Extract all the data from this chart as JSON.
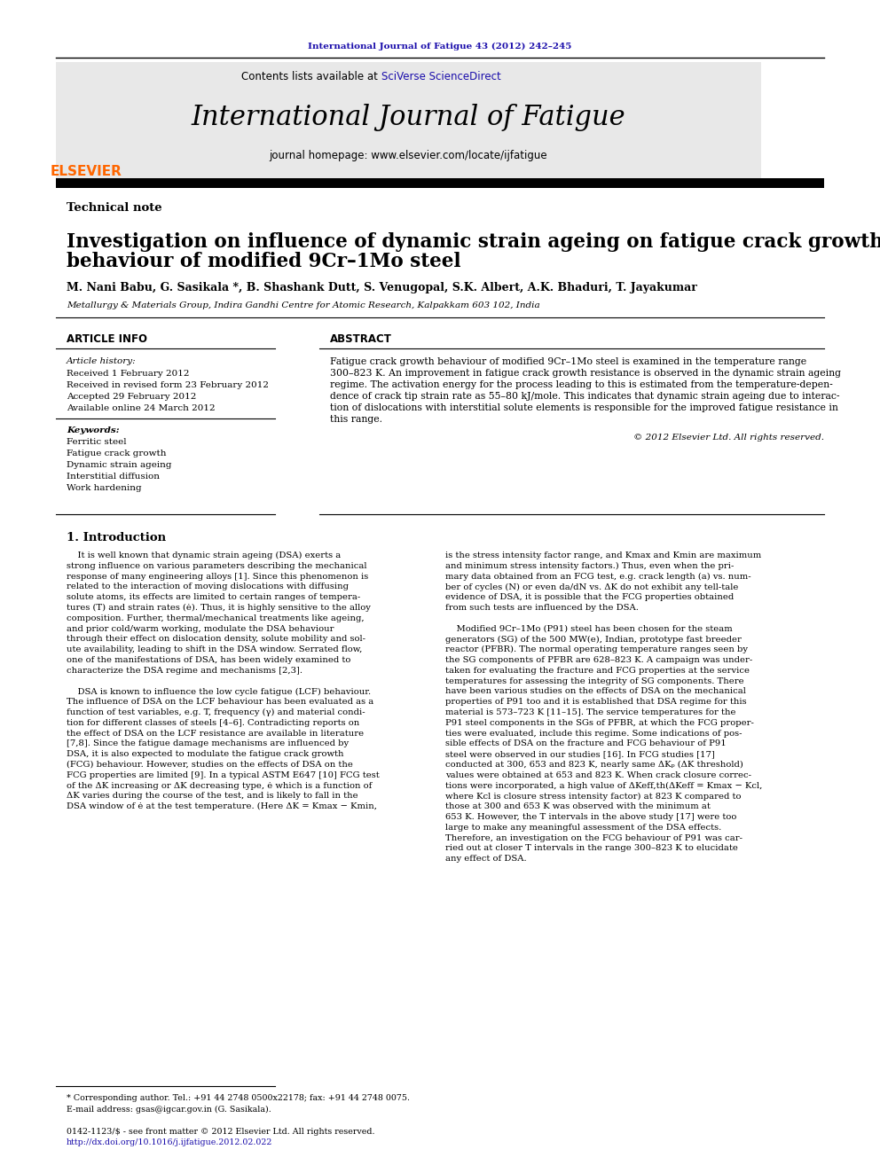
{
  "page_width": 9.92,
  "page_height": 13.23,
  "bg_color": "#ffffff",
  "top_url": "International Journal of Fatigue 43 (2012) 242–245",
  "top_url_color": "#1a0dab",
  "header_bg": "#e8e8e8",
  "contents_text": "Contents lists available at ",
  "sciverse_text": "SciVerse ScienceDirect",
  "sciverse_color": "#1a0dab",
  "journal_title": "International Journal of Fatigue",
  "homepage_text": "journal homepage: www.elsevier.com/locate/ijfatigue",
  "elsevier_color": "#FF6600",
  "article_type": "Technical note",
  "paper_title_line1": "Investigation on influence of dynamic strain ageing on fatigue crack growth",
  "paper_title_line2": "behaviour of modified 9Cr–1Mo steel",
  "authors": "M. Nani Babu, G. Sasikala *, B. Shashank Dutt, S. Venugopal, S.K. Albert, A.K. Bhaduri, T. Jayakumar",
  "affiliation": "Metallurgy & Materials Group, Indira Gandhi Centre for Atomic Research, Kalpakkam 603 102, India",
  "article_info_title": "ARTICLE INFO",
  "article_history_label": "Article history:",
  "received1": "Received 1 February 2012",
  "received2": "Received in revised form 23 February 2012",
  "accepted": "Accepted 29 February 2012",
  "available": "Available online 24 March 2012",
  "keywords_label": "Keywords:",
  "keywords": [
    "Ferritic steel",
    "Fatigue crack growth",
    "Dynamic strain ageing",
    "Interstitial diffusion",
    "Work hardening"
  ],
  "abstract_title": "ABSTRACT",
  "abstract_lines": [
    "Fatigue crack growth behaviour of modified 9Cr–1Mo steel is examined in the temperature range",
    "300–823 K. An improvement in fatigue crack growth resistance is observed in the dynamic strain ageing",
    "regime. The activation energy for the process leading to this is estimated from the temperature-depen-",
    "dence of crack tip strain rate as 55–80 kJ/mole. This indicates that dynamic strain ageing due to interac-",
    "tion of dislocations with interstitial solute elements is responsible for the improved fatigue resistance in",
    "this range."
  ],
  "copyright": "© 2012 Elsevier Ltd. All rights reserved.",
  "intro_title": "1. Introduction",
  "intro_col1_lines": [
    "    It is well known that dynamic strain ageing (DSA) exerts a",
    "strong influence on various parameters describing the mechanical",
    "response of many engineering alloys [1]. Since this phenomenon is",
    "related to the interaction of moving dislocations with diffusing",
    "solute atoms, its effects are limited to certain ranges of tempera-",
    "tures (T) and strain rates (ė). Thus, it is highly sensitive to the alloy",
    "composition. Further, thermal/mechanical treatments like ageing,",
    "and prior cold/warm working, modulate the DSA behaviour",
    "through their effect on dislocation density, solute mobility and sol-",
    "ute availability, leading to shift in the DSA window. Serrated flow,",
    "one of the manifestations of DSA, has been widely examined to",
    "characterize the DSA regime and mechanisms [2,3].",
    "",
    "    DSA is known to influence the low cycle fatigue (LCF) behaviour.",
    "The influence of DSA on the LCF behaviour has been evaluated as a",
    "function of test variables, e.g. T, frequency (γ) and material condi-",
    "tion for different classes of steels [4–6]. Contradicting reports on",
    "the effect of DSA on the LCF resistance are available in literature",
    "[7,8]. Since the fatigue damage mechanisms are influenced by",
    "DSA, it is also expected to modulate the fatigue crack growth",
    "(FCG) behaviour. However, studies on the effects of DSA on the",
    "FCG properties are limited [9]. In a typical ASTM E647 [10] FCG test",
    "of the ΔK increasing or ΔK decreasing type, ė which is a function of",
    "ΔK varies during the course of the test, and is likely to fall in the",
    "DSA window of ė at the test temperature. (Here ΔK = Kmax − Kmin,"
  ],
  "intro_col2_lines": [
    "is the stress intensity factor range, and Kmax and Kmin are maximum",
    "and minimum stress intensity factors.) Thus, even when the pri-",
    "mary data obtained from an FCG test, e.g. crack length (a) vs. num-",
    "ber of cycles (N) or even da/dN vs. ΔK do not exhibit any tell-tale",
    "evidence of DSA, it is possible that the FCG properties obtained",
    "from such tests are influenced by the DSA.",
    "",
    "    Modified 9Cr–1Mo (P91) steel has been chosen for the steam",
    "generators (SG) of the 500 MW(e), Indian, prototype fast breeder",
    "reactor (PFBR). The normal operating temperature ranges seen by",
    "the SG components of PFBR are 628–823 K. A campaign was under-",
    "taken for evaluating the fracture and FCG properties at the service",
    "temperatures for assessing the integrity of SG components. There",
    "have been various studies on the effects of DSA on the mechanical",
    "properties of P91 too and it is established that DSA regime for this",
    "material is 573–723 K [11–15]. The service temperatures for the",
    "P91 steel components in the SGs of PFBR, at which the FCG proper-",
    "ties were evaluated, include this regime. Some indications of pos-",
    "sible effects of DSA on the fracture and FCG behaviour of P91",
    "steel were observed in our studies [16]. In FCG studies [17]",
    "conducted at 300, 653 and 823 K, nearly same ΔKₚ (ΔK threshold)",
    "values were obtained at 653 and 823 K. When crack closure correc-",
    "tions were incorporated, a high value of ΔKeff,th(ΔKeff = Kmax − Kcl,",
    "where Kcl is closure stress intensity factor) at 823 K compared to",
    "those at 300 and 653 K was observed with the minimum at",
    "653 K. However, the T intervals in the above study [17] were too",
    "large to make any meaningful assessment of the DSA effects.",
    "Therefore, an investigation on the FCG behaviour of P91 was car-",
    "ried out at closer T intervals in the range 300–823 K to elucidate",
    "any effect of DSA."
  ],
  "footnote1": "* Corresponding author. Tel.: +91 44 2748 0500x22178; fax: +91 44 2748 0075.",
  "footnote2": "E-mail address: gsas@igcar.gov.in (G. Sasikala).",
  "footer1": "0142-1123/$ - see front matter © 2012 Elsevier Ltd. All rights reserved.",
  "footer2": "http://dx.doi.org/10.1016/j.ijfatigue.2012.02.022",
  "footer2_color": "#1a0dab"
}
